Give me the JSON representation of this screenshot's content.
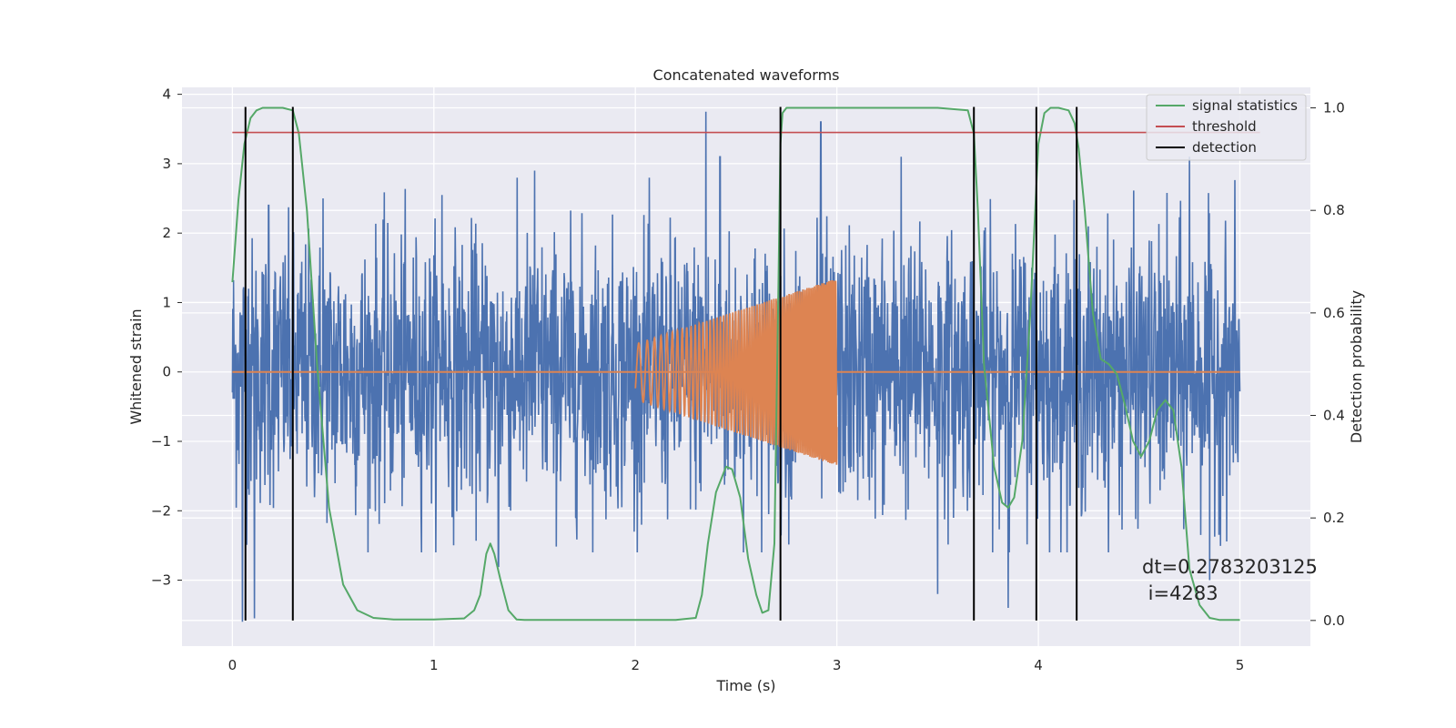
{
  "chart_data": {
    "type": "line",
    "title": "Concatenated waveforms",
    "xlabel": "Time (s)",
    "ylabel": "Whitened strain",
    "y2label": "Detection probability",
    "xlim": [
      -0.25,
      5.35
    ],
    "ylim": [
      -3.95,
      4.1
    ],
    "y2lim": [
      -0.05,
      1.04
    ],
    "xticks": [
      0,
      1,
      2,
      3,
      4,
      5
    ],
    "yticks": [
      -3,
      -2,
      -1,
      0,
      1,
      2,
      3,
      4
    ],
    "yticklabels": [
      "−3",
      "−2",
      "−1",
      "0",
      "1",
      "2",
      "3",
      "4"
    ],
    "y2ticks": [
      0.0,
      0.2,
      0.4,
      0.6,
      0.8,
      1.0
    ],
    "y2ticklabels": [
      "0.0",
      "0.2",
      "0.4",
      "0.6",
      "0.8",
      "1.0"
    ],
    "grid": true,
    "legend_position": "top-right",
    "colors": {
      "strain": "#4c72b0",
      "injection": "#dd8452",
      "signal": "#55a868",
      "threshold": "#c44e52",
      "detection": "#000000",
      "background": "#eaeaf2"
    },
    "series": [
      {
        "name": "",
        "role": "whitened-strain-noise",
        "axis": "left",
        "x_range": [
          0,
          5
        ],
        "typical_envelope": [
          -2.6,
          2.8
        ],
        "notable_peaks": [
          [
            0.05,
            -3.6
          ],
          [
            0.08,
            1.2
          ],
          [
            0.11,
            -3.55
          ],
          [
            0.18,
            2.4
          ],
          [
            0.3,
            1.8
          ],
          [
            0.45,
            2.5
          ],
          [
            1.04,
            2.55
          ],
          [
            1.32,
            -2.8
          ],
          [
            1.5,
            2.9
          ],
          [
            2.35,
            3.75
          ],
          [
            2.42,
            3.1
          ],
          [
            2.92,
            3.6
          ],
          [
            3.32,
            3.1
          ],
          [
            3.5,
            -3.2
          ],
          [
            3.85,
            -3.4
          ],
          [
            4.75,
            3.1
          ],
          [
            4.85,
            -3.0
          ]
        ]
      },
      {
        "name": "",
        "role": "injected-chirp",
        "axis": "left",
        "x_range": [
          2.0,
          3.0
        ],
        "amplitude_start": 0.4,
        "amplitude_end": 1.35,
        "freq_start_hz": 20,
        "freq_end_hz": 120
      },
      {
        "name": "signal statistics",
        "axis": "right",
        "x": [
          0,
          0.03,
          0.06,
          0.09,
          0.12,
          0.15,
          0.2,
          0.25,
          0.3,
          0.33,
          0.37,
          0.42,
          0.48,
          0.55,
          0.62,
          0.7,
          0.8,
          1.0,
          1.15,
          1.2,
          1.23,
          1.26,
          1.28,
          1.3,
          1.33,
          1.37,
          1.41,
          1.45,
          1.5,
          1.6,
          2.0,
          2.2,
          2.3,
          2.33,
          2.36,
          2.4,
          2.45,
          2.48,
          2.52,
          2.56,
          2.6,
          2.63,
          2.66,
          2.69,
          2.71,
          2.72,
          2.73,
          2.75,
          2.8,
          3.0,
          3.5,
          3.65,
          3.68,
          3.7,
          3.73,
          3.78,
          3.82,
          3.85,
          3.88,
          3.92,
          3.96,
          4.0,
          4.03,
          4.06,
          4.1,
          4.15,
          4.18,
          4.2,
          4.23,
          4.27,
          4.31,
          4.35,
          4.39,
          4.43,
          4.47,
          4.51,
          4.55,
          4.59,
          4.63,
          4.67,
          4.71,
          4.75,
          4.8,
          4.85,
          4.9,
          4.95,
          5.0
        ],
        "y": [
          0.66,
          0.82,
          0.93,
          0.98,
          0.995,
          1.0,
          1.0,
          1.0,
          0.995,
          0.95,
          0.8,
          0.5,
          0.22,
          0.07,
          0.02,
          0.005,
          0.002,
          0.002,
          0.004,
          0.02,
          0.05,
          0.13,
          0.15,
          0.13,
          0.08,
          0.02,
          0.002,
          0.001,
          0.001,
          0.001,
          0.001,
          0.001,
          0.005,
          0.05,
          0.15,
          0.25,
          0.3,
          0.295,
          0.24,
          0.12,
          0.05,
          0.015,
          0.02,
          0.15,
          0.65,
          0.93,
          0.99,
          1.0,
          1.0,
          1.0,
          1.0,
          0.995,
          0.95,
          0.8,
          0.5,
          0.3,
          0.23,
          0.22,
          0.24,
          0.35,
          0.6,
          0.93,
          0.99,
          1.0,
          1.0,
          0.995,
          0.97,
          0.92,
          0.8,
          0.6,
          0.51,
          0.5,
          0.48,
          0.42,
          0.35,
          0.32,
          0.35,
          0.41,
          0.43,
          0.41,
          0.3,
          0.1,
          0.03,
          0.005,
          0.001,
          0.001,
          0.001
        ]
      },
      {
        "name": "threshold",
        "axis": "right",
        "x": [
          0,
          5.1
        ],
        "y": [
          0.952,
          0.952
        ]
      },
      {
        "name": "detection",
        "axis": "right",
        "type": "vlines",
        "x": [
          0.065,
          0.3,
          2.72,
          3.68,
          3.99,
          4.19
        ],
        "y_range": [
          0.0,
          1.0
        ]
      }
    ],
    "annotation_lines": [
      "dt=0.2783203125",
      " i=4283"
    ]
  }
}
